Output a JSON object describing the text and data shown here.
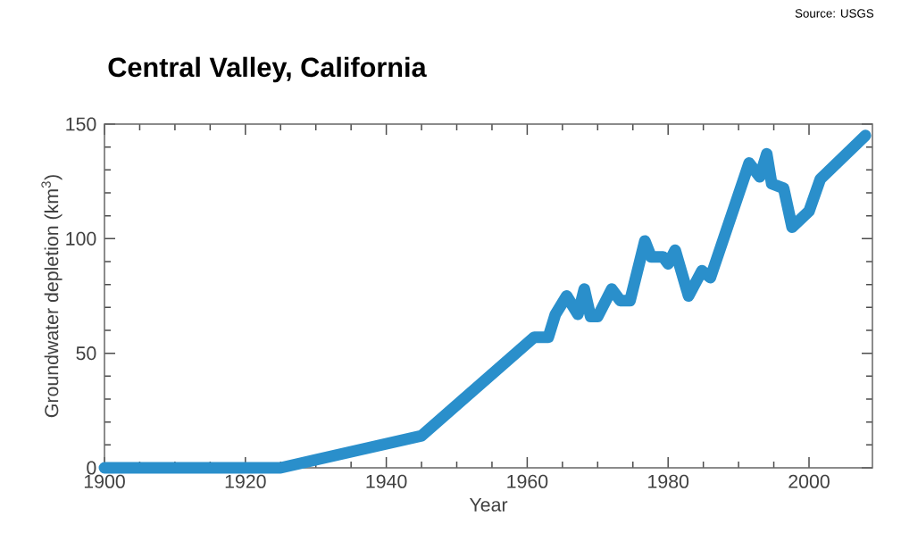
{
  "chart_data": {
    "type": "line",
    "title": "Central Valley, California",
    "xlabel": "Year",
    "ylabel": "Groundwater depletion (km$^{3}$)",
    "annotations": [
      "Source: USGS"
    ],
    "x": [
      1900,
      1925,
      1945,
      1961,
      1963,
      1964,
      1965.6,
      1967.2,
      1968.1,
      1969,
      1970,
      1972,
      1973.2,
      1974.6,
      1976.7,
      1977.6,
      1979.3,
      1980,
      1981,
      1982.9,
      1984.8,
      1986,
      1991.5,
      1993,
      1994,
      1994.7,
      1996.4,
      1997.6,
      2000,
      2001.6,
      2008
    ],
    "series": [
      {
        "color": "#2a8fcb",
        "values": [
          0,
          0,
          14,
          57,
          57,
          67,
          75,
          67,
          78,
          66,
          66,
          78,
          73,
          73,
          99,
          92,
          92,
          89,
          95,
          75,
          86,
          83,
          133,
          127,
          137,
          124,
          122,
          105,
          112,
          126,
          145
        ]
      }
    ],
    "xlim": [
      1900,
      2009
    ],
    "ylim": [
      0,
      150
    ],
    "xticks": [
      1900,
      1920,
      1940,
      1960,
      1980,
      2000
    ],
    "yticks": [
      0,
      50,
      100,
      150
    ],
    "line_style": "solid",
    "marker": "none",
    "grid": false
  }
}
